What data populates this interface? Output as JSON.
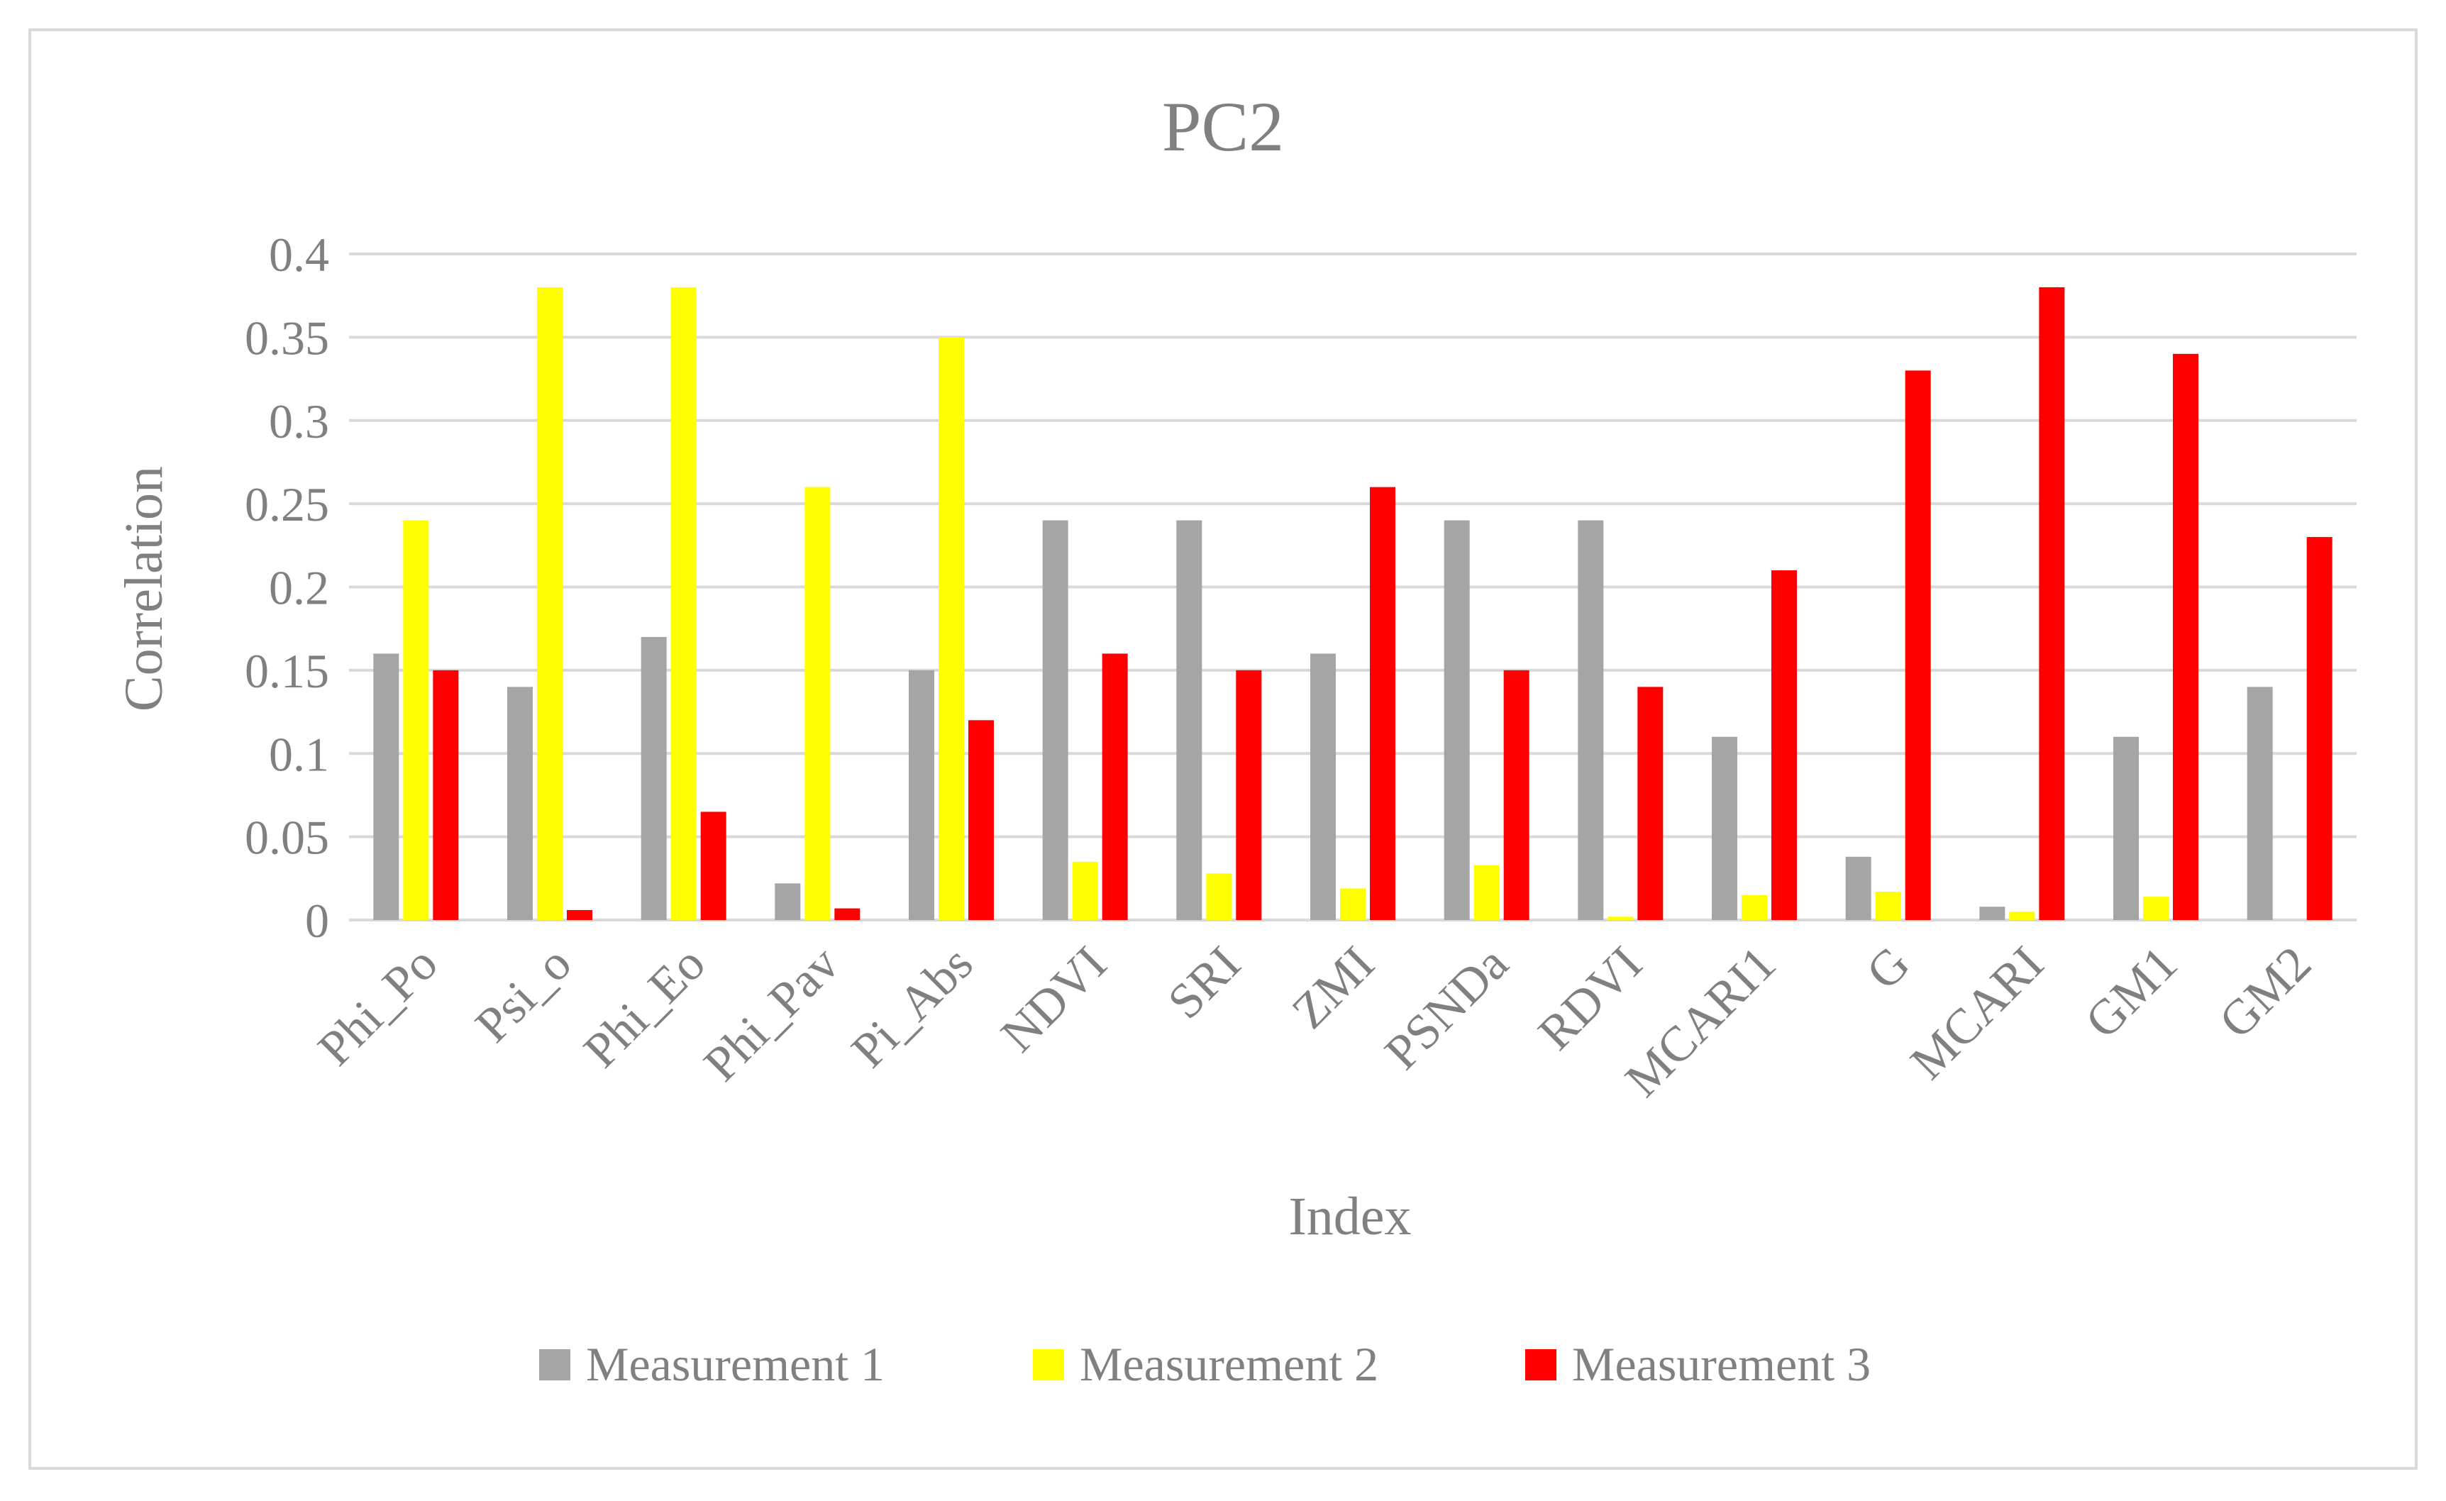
{
  "chart_data": {
    "type": "bar",
    "title": "PC2",
    "xlabel": "Index",
    "ylabel": "Correlation",
    "ylim": [
      0,
      0.4
    ],
    "ytick_step": 0.05,
    "ytick_labels": [
      "0",
      "0.05",
      "0.1",
      "0.15",
      "0.2",
      "0.25",
      "0.3",
      "0.35",
      "0.4"
    ],
    "grid": true,
    "legend_position": "bottom",
    "categories": [
      "Phi_Po",
      "Psi_o",
      "Phi_Eo",
      "Phi_Pav",
      "Pi_Abs",
      "NDVI",
      "SRI",
      "ZMI",
      "PSNDa",
      "RDVI",
      "MCARI1",
      "G",
      "MCARI",
      "GM1",
      "GM2"
    ],
    "series": [
      {
        "name": "Measurement 1",
        "color": "#A5A5A5",
        "values": [
          0.16,
          0.14,
          0.17,
          0.022,
          0.15,
          0.24,
          0.24,
          0.16,
          0.24,
          0.24,
          0.11,
          0.038,
          0.008,
          0.11,
          0.14
        ]
      },
      {
        "name": "Measurement 2",
        "color": "#FFFF00",
        "values": [
          0.24,
          0.38,
          0.38,
          0.26,
          0.35,
          0.035,
          0.028,
          0.019,
          0.033,
          0.002,
          0.015,
          0.017,
          0.005,
          0.014,
          0.0
        ]
      },
      {
        "name": "Measurement 3",
        "color": "#FF0000",
        "values": [
          0.15,
          0.006,
          0.065,
          0.007,
          0.12,
          0.16,
          0.15,
          0.26,
          0.15,
          0.14,
          0.21,
          0.33,
          0.38,
          0.34,
          0.23
        ]
      }
    ]
  }
}
